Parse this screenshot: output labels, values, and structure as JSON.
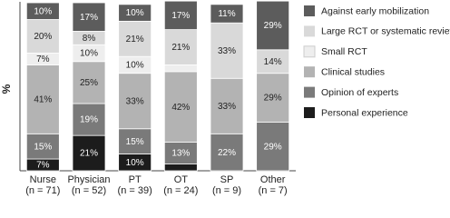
{
  "chart_data": {
    "type": "stacked-bar",
    "y_label": "%",
    "categories": [
      "Nurse",
      "Physician",
      "PT",
      "OT",
      "SP",
      "Other"
    ],
    "category_counts": [
      "(n = 71)",
      "(n = 52)",
      "(n = 39)",
      "(n = 24)",
      "(n = 9)",
      "(n = 7)"
    ],
    "ylim": [
      0,
      100
    ],
    "series": [
      {
        "name": "Personal experience",
        "color": "#1c1c1c",
        "values": [
          7,
          21,
          10,
          4,
          0,
          0
        ],
        "value_labels": [
          "7%",
          "21%",
          "10%",
          null,
          null,
          null
        ]
      },
      {
        "name": "Opinion of experts",
        "color": "#7a7a7a",
        "values": [
          15,
          19,
          15,
          13,
          22,
          29
        ],
        "value_labels": [
          "15%",
          "19%",
          "15%",
          "13%",
          "22%",
          "29%"
        ]
      },
      {
        "name": "Clinical studies",
        "color": "#b3b3b3",
        "values": [
          41,
          25,
          33,
          42,
          33,
          29
        ],
        "value_labels": [
          "41%",
          "25%",
          "33%",
          "42%",
          "33%",
          "29%"
        ]
      },
      {
        "name": "Small RCT",
        "color": "#eeeeee",
        "values": [
          7,
          10,
          10,
          4,
          0,
          0
        ],
        "value_labels": [
          "7%",
          "10%",
          "10%",
          null,
          null,
          null
        ]
      },
      {
        "name": "Large RCT or systematic review",
        "color": "#d9d9d9",
        "values": [
          20,
          8,
          21,
          21,
          33,
          14
        ],
        "value_labels": [
          "20%",
          "8%",
          "21%",
          "21%",
          "33%",
          "14%"
        ]
      },
      {
        "name": "Against early mobilization",
        "color": "#5c5c5c",
        "values": [
          10,
          17,
          10,
          17,
          11,
          29
        ],
        "value_labels": [
          "10%",
          "17%",
          "10%",
          "17%",
          "11%",
          "29%"
        ]
      }
    ],
    "legend": "right"
  }
}
